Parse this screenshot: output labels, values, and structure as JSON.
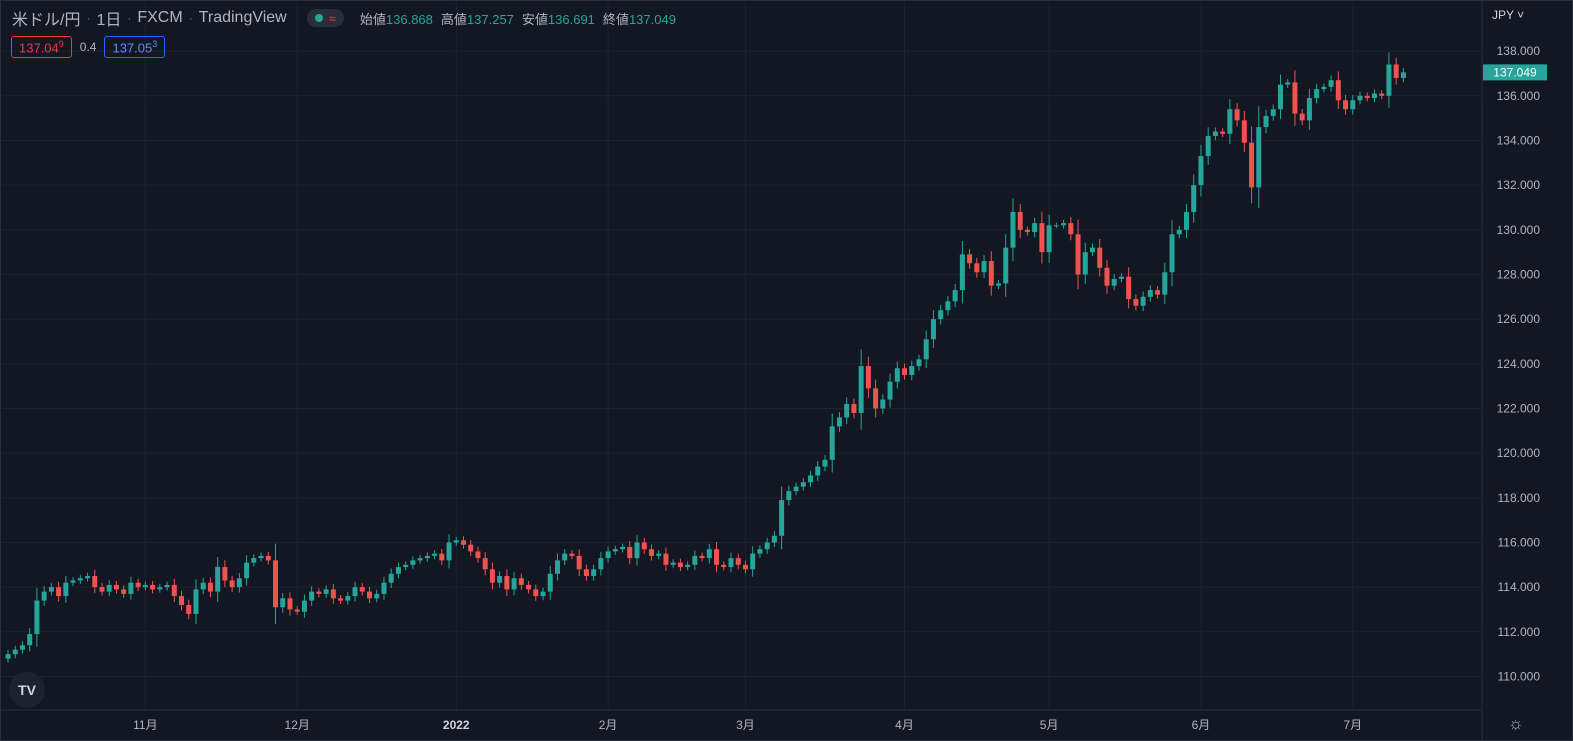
{
  "header": {
    "symbol": "米ドル/円",
    "interval": "1日",
    "source": "FXCM",
    "platform": "TradingView",
    "wave_symbol": "≈",
    "ohlc": [
      {
        "label": "始値",
        "value": "136.868"
      },
      {
        "label": "高値",
        "value": "137.257"
      },
      {
        "label": "安値",
        "value": "136.691"
      },
      {
        "label": "終値",
        "value": "137.049"
      }
    ]
  },
  "quote": {
    "sell_main": "137.04",
    "sell_pip": "9",
    "spread": "0.4",
    "buy_main": "137.05",
    "buy_pip": "3"
  },
  "currency": "JPY ˅",
  "logo_text": "TV",
  "settings_icon": "gear-icon",
  "colors": {
    "up": "#26a69a",
    "down": "#ef5350",
    "grid": "#1e222d",
    "text": "#d1d4dc"
  },
  "chart_data": {
    "type": "candlestick",
    "ylim": [
      108.5,
      140.2
    ],
    "y_ticks": [
      110,
      112,
      114,
      116,
      118,
      120,
      122,
      124,
      126,
      128,
      130,
      132,
      134,
      136,
      138
    ],
    "y_tick_labels": [
      "110.000",
      "112.000",
      "114.000",
      "116.000",
      "118.000",
      "120.000",
      "122.000",
      "124.000",
      "126.000",
      "128.000",
      "130.000",
      "132.000",
      "134.000",
      "136.000",
      "138.000"
    ],
    "x_ticks": [
      {
        "label": "11月",
        "index": 19
      },
      {
        "label": "12月",
        "index": 40
      },
      {
        "label": "2022",
        "index": 62,
        "bold": true
      },
      {
        "label": "2月",
        "index": 83
      },
      {
        "label": "3月",
        "index": 102
      },
      {
        "label": "4月",
        "index": 124
      },
      {
        "label": "5月",
        "index": 144
      },
      {
        "label": "6月",
        "index": 165
      },
      {
        "label": "7月",
        "index": 186
      }
    ],
    "last_price": 137.049,
    "last_price_label": "137.049",
    "close": [
      111.0,
      111.2,
      111.4,
      111.9,
      113.4,
      113.8,
      114.0,
      113.6,
      114.2,
      114.3,
      114.4,
      114.5,
      114.0,
      113.8,
      114.1,
      113.9,
      113.7,
      114.2,
      114.0,
      114.1,
      113.9,
      114.0,
      114.1,
      113.6,
      113.2,
      112.8,
      113.9,
      114.2,
      113.8,
      114.9,
      114.3,
      114.0,
      114.4,
      115.1,
      115.3,
      115.4,
      115.2,
      113.1,
      113.5,
      113.0,
      112.9,
      113.4,
      113.8,
      113.7,
      113.9,
      113.5,
      113.4,
      113.6,
      114.0,
      113.8,
      113.5,
      113.7,
      114.2,
      114.6,
      114.9,
      115.0,
      115.2,
      115.3,
      115.4,
      115.5,
      115.2,
      116.0,
      116.1,
      115.9,
      115.6,
      115.3,
      114.8,
      114.2,
      114.5,
      113.9,
      114.4,
      114.1,
      113.9,
      113.6,
      113.8,
      114.6,
      115.2,
      115.5,
      115.4,
      114.8,
      114.5,
      114.8,
      115.3,
      115.6,
      115.7,
      115.8,
      115.3,
      116.0,
      115.7,
      115.4,
      115.5,
      115.0,
      115.1,
      114.9,
      115.0,
      115.4,
      115.3,
      115.7,
      115.0,
      114.9,
      115.3,
      115.0,
      114.8,
      115.5,
      115.7,
      116.0,
      116.3,
      117.9,
      118.3,
      118.5,
      118.7,
      119.0,
      119.4,
      119.7,
      121.2,
      121.6,
      122.2,
      121.8,
      123.9,
      122.9,
      122.0,
      122.4,
      123.2,
      123.8,
      123.5,
      123.9,
      124.2,
      125.1,
      126.0,
      126.4,
      126.8,
      127.3,
      128.9,
      128.5,
      128.1,
      128.6,
      127.5,
      127.6,
      129.2,
      130.8,
      130.0,
      129.9,
      130.3,
      129.0,
      130.2,
      130.2,
      130.3,
      129.8,
      128.0,
      129.0,
      129.2,
      128.3,
      127.5,
      127.8,
      127.9,
      126.9,
      126.6,
      127.0,
      127.3,
      127.1,
      128.1,
      129.8,
      130.0,
      130.8,
      132.0,
      133.3,
      134.2,
      134.4,
      134.3,
      135.4,
      134.9,
      133.9,
      131.9,
      134.6,
      135.1,
      135.4,
      136.5,
      136.6,
      135.2,
      134.9,
      135.9,
      136.3,
      136.4,
      136.7,
      135.8,
      135.4,
      135.8,
      136.0,
      135.9,
      136.1,
      136.0,
      137.4,
      136.8,
      137.049
    ]
  }
}
